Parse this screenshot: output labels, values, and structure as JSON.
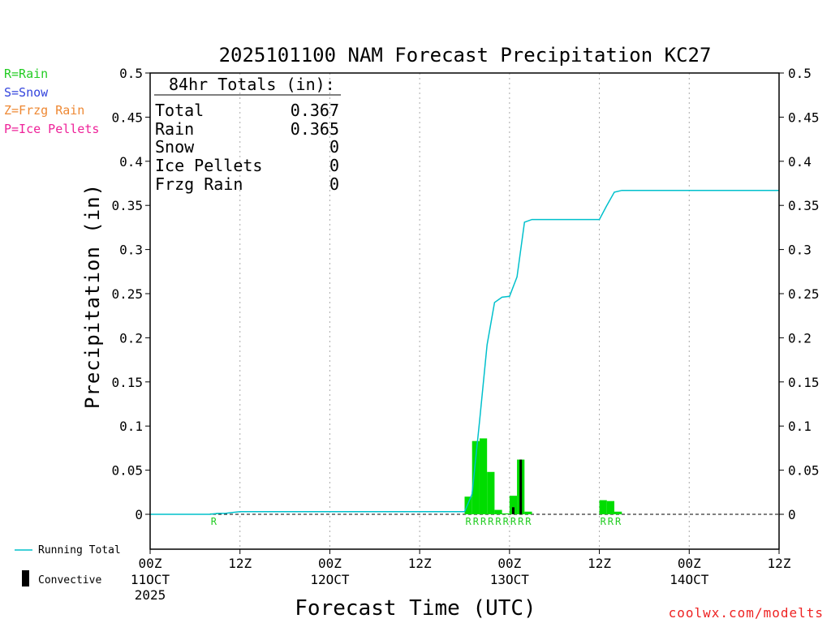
{
  "chart_data": {
    "type": "bar",
    "title": "2025101100 NAM Forecast Precipitation KC27",
    "xlabel": "Forecast Time (UTC)",
    "ylabel": "Precipitation (in)",
    "ylim": [
      -0.04,
      0.5
    ],
    "xlim_hours": [
      0,
      84
    ],
    "y_ticks": [
      "0.5",
      "0.45",
      "0.4",
      "0.35",
      "0.3",
      "0.25",
      "0.2",
      "0.15",
      "0.1",
      "0.05",
      "0"
    ],
    "y_tick_values": [
      0.5,
      0.45,
      0.4,
      0.35,
      0.3,
      0.25,
      0.2,
      0.15,
      0.1,
      0.05,
      0
    ],
    "x_ticks": [
      {
        "hour": 0,
        "label": "00Z",
        "sub": "11OCT",
        "sub2": "2025"
      },
      {
        "hour": 12,
        "label": "12Z",
        "sub": "",
        "sub2": ""
      },
      {
        "hour": 24,
        "label": "00Z",
        "sub": "12OCT",
        "sub2": ""
      },
      {
        "hour": 36,
        "label": "12Z",
        "sub": "",
        "sub2": ""
      },
      {
        "hour": 48,
        "label": "00Z",
        "sub": "13OCT",
        "sub2": ""
      },
      {
        "hour": 60,
        "label": "12Z",
        "sub": "",
        "sub2": ""
      },
      {
        "hour": 72,
        "label": "00Z",
        "sub": "14OCT",
        "sub2": ""
      },
      {
        "hour": 84,
        "label": "12Z",
        "sub": "",
        "sub2": ""
      }
    ],
    "rain_bars": [
      {
        "hour": 8.5,
        "value": 0.001
      },
      {
        "hour": 42.5,
        "value": 0.02
      },
      {
        "hour": 43.5,
        "value": 0.083
      },
      {
        "hour": 44.5,
        "value": 0.086
      },
      {
        "hour": 45.5,
        "value": 0.048
      },
      {
        "hour": 46.5,
        "value": 0.005
      },
      {
        "hour": 47.5,
        "value": 0.001
      },
      {
        "hour": 48.5,
        "value": 0.021
      },
      {
        "hour": 49.5,
        "value": 0.062
      },
      {
        "hour": 50.5,
        "value": 0.003
      },
      {
        "hour": 60.5,
        "value": 0.016
      },
      {
        "hour": 61.5,
        "value": 0.015
      },
      {
        "hour": 62.5,
        "value": 0.003
      }
    ],
    "convective_bars": [
      {
        "hour": 48.5,
        "value": 0.008
      },
      {
        "hour": 49.5,
        "value": 0.062
      }
    ],
    "running_total": {
      "hours": [
        0,
        8,
        9,
        10,
        11,
        12,
        14,
        20,
        30,
        41,
        42,
        43,
        44,
        45,
        46,
        47,
        48,
        49,
        50,
        51,
        55,
        60,
        61,
        62,
        63,
        84
      ],
      "values": [
        0,
        0,
        0.001,
        0.001,
        0.002,
        0.003,
        0.003,
        0.003,
        0.003,
        0.003,
        0.003,
        0.023,
        0.106,
        0.192,
        0.24,
        0.246,
        0.247,
        0.269,
        0.331,
        0.334,
        0.334,
        0.334,
        0.35,
        0.365,
        0.367,
        0.367
      ]
    },
    "ptype_markers": [
      {
        "hour": 8.5,
        "label": "R"
      },
      {
        "hour": 42.5,
        "label": "R"
      },
      {
        "hour": 43.5,
        "label": "R"
      },
      {
        "hour": 44.5,
        "label": "R"
      },
      {
        "hour": 45.5,
        "label": "R"
      },
      {
        "hour": 46.5,
        "label": "R"
      },
      {
        "hour": 47.5,
        "label": "R"
      },
      {
        "hour": 48.5,
        "label": "R"
      },
      {
        "hour": 49.5,
        "label": "R"
      },
      {
        "hour": 50.5,
        "label": "R"
      },
      {
        "hour": 60.5,
        "label": "R"
      },
      {
        "hour": 61.5,
        "label": "R"
      },
      {
        "hour": 62.5,
        "label": "R"
      }
    ],
    "totals_box": {
      "header": "84hr Totals (in):",
      "rows": [
        {
          "label": "Total",
          "value": "0.367"
        },
        {
          "label": "Rain",
          "value": "0.365"
        },
        {
          "label": "Snow",
          "value": "0"
        },
        {
          "label": "Ice Pellets",
          "value": "0"
        },
        {
          "label": "Frzg Rain",
          "value": "0"
        }
      ]
    },
    "ptype_key": [
      {
        "label": "R=Rain",
        "color": "#22cc22"
      },
      {
        "label": "S=Snow",
        "color": "#3344dd"
      },
      {
        "label": "Z=Frzg Rain",
        "color": "#ee8833"
      },
      {
        "label": "P=Ice Pellets",
        "color": "#ee2299"
      }
    ],
    "legend": {
      "running_total": "Running Total",
      "convective": "Convective"
    },
    "credit": "coolwx.com/modelts",
    "colors": {
      "rain": "#00dd00",
      "convective": "#000000",
      "running_total": "#00c0cc",
      "marker": "#22cc22",
      "credit": "#ee2222",
      "grid": "#aaaaaa"
    }
  }
}
